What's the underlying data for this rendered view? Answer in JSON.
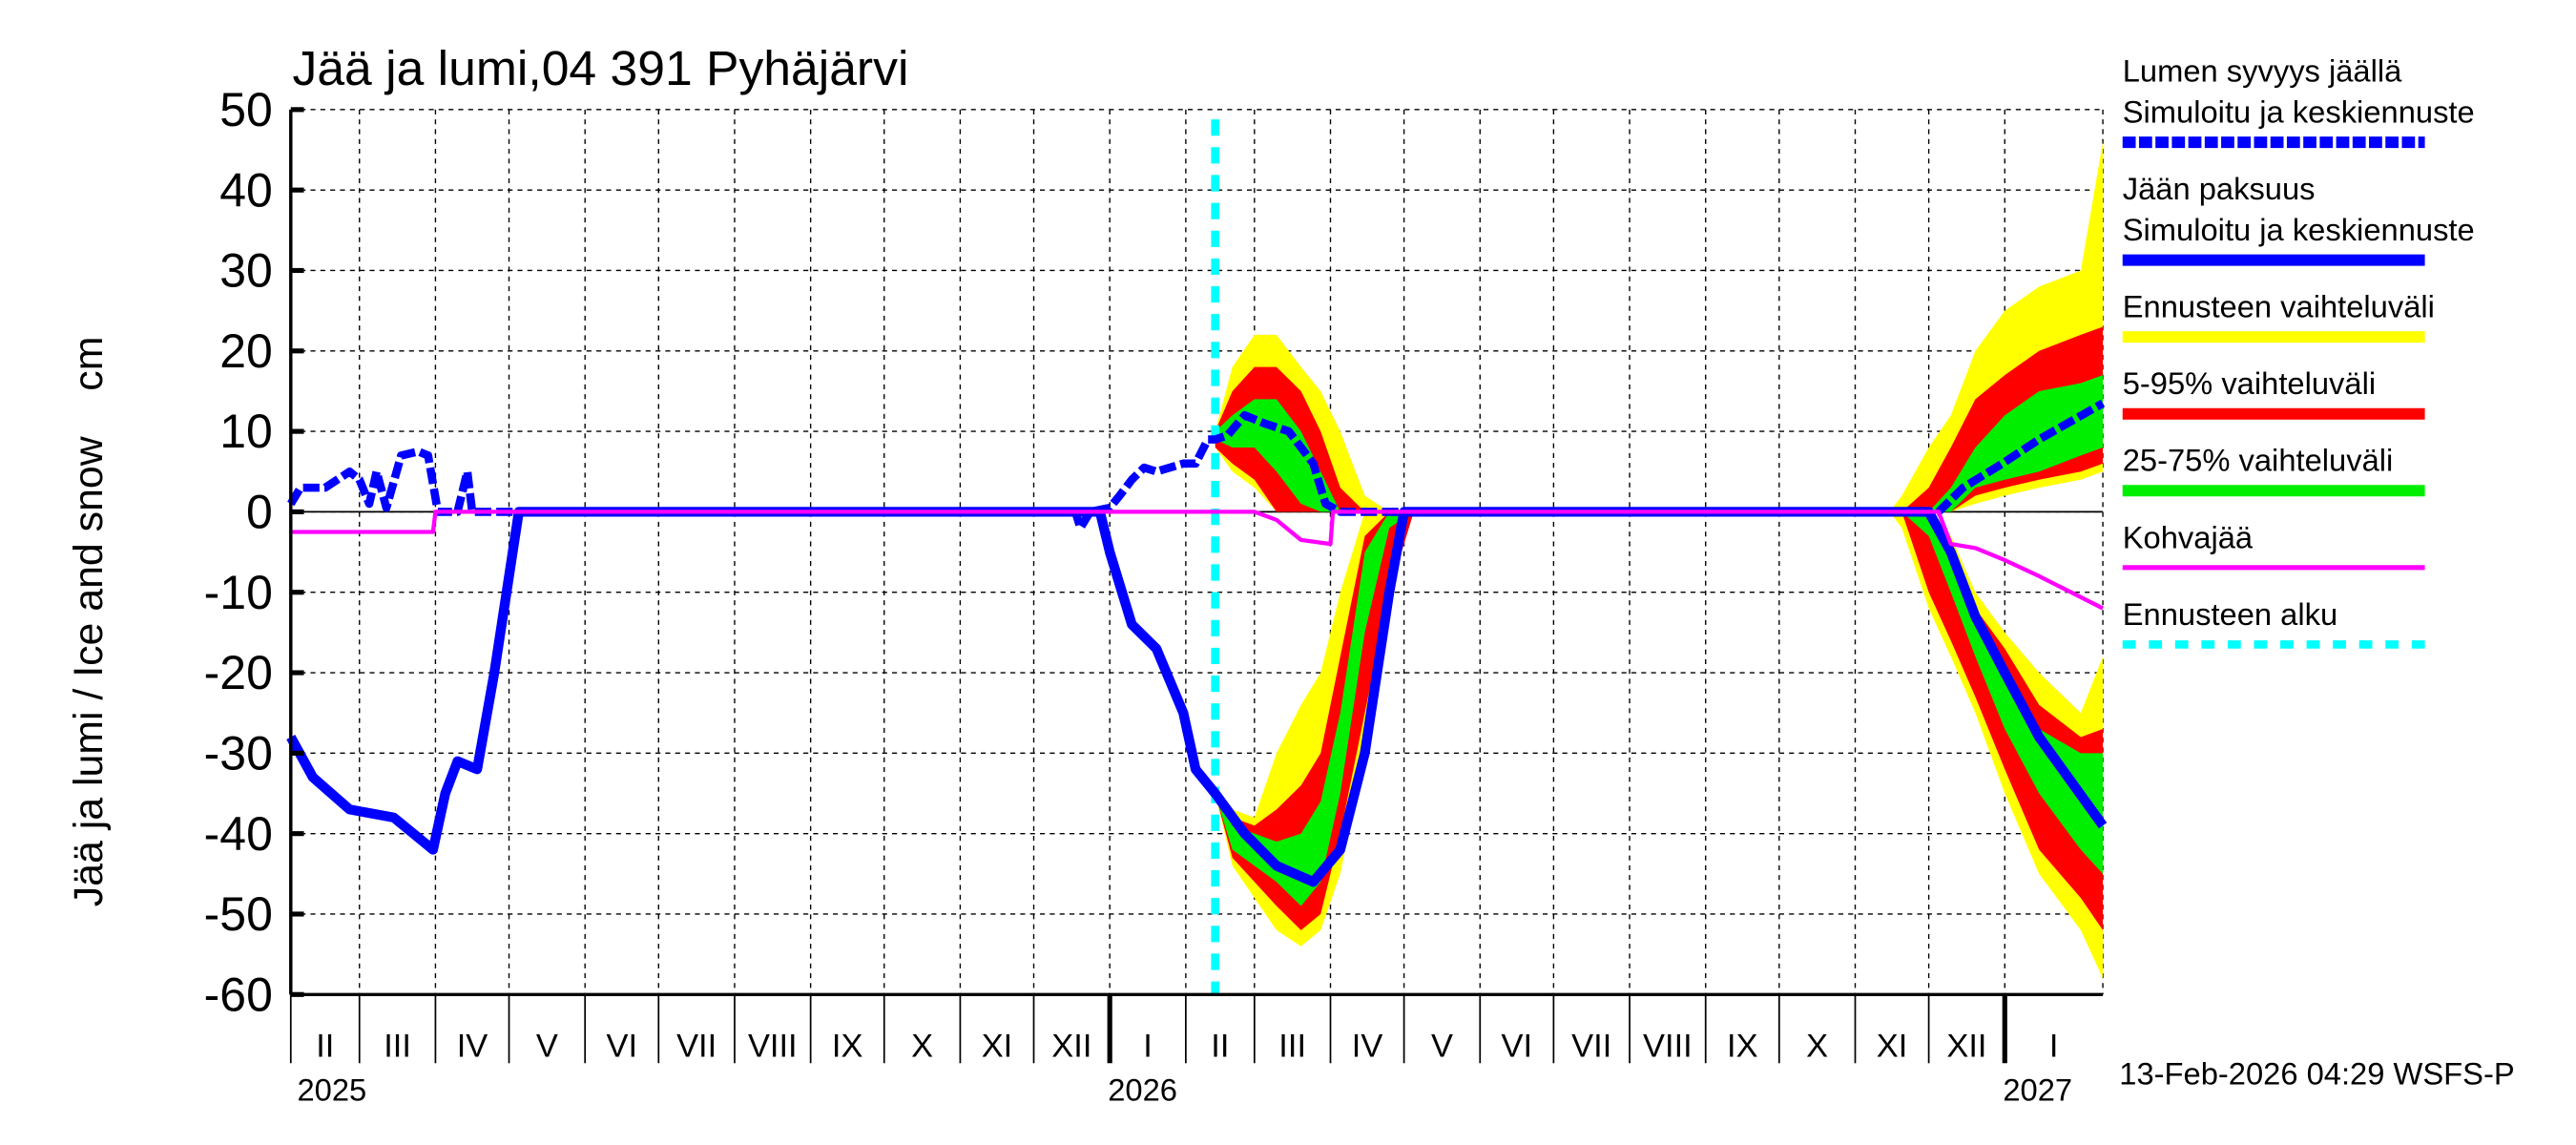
{
  "chart_data": {
    "type": "area",
    "title": "Jää ja lumi,04 391 Pyhäjärvi",
    "ylabel": "Jää ja lumi / Ice and snow    cm",
    "ylim": [
      -60,
      50
    ],
    "yticks": [
      50,
      40,
      30,
      20,
      10,
      0,
      -10,
      -20,
      -30,
      -40,
      -50,
      -60
    ],
    "xlim": [
      "2025-02-01",
      "2027-02-10"
    ],
    "grid": true,
    "months": [
      {
        "label": "II",
        "start": "2025-02-01"
      },
      {
        "label": "III",
        "start": "2025-03-01"
      },
      {
        "label": "IV",
        "start": "2025-04-01"
      },
      {
        "label": "V",
        "start": "2025-05-01"
      },
      {
        "label": "VI",
        "start": "2025-06-01"
      },
      {
        "label": "VII",
        "start": "2025-07-01"
      },
      {
        "label": "VIII",
        "start": "2025-08-01"
      },
      {
        "label": "IX",
        "start": "2025-09-01"
      },
      {
        "label": "X",
        "start": "2025-10-01"
      },
      {
        "label": "XI",
        "start": "2025-11-01"
      },
      {
        "label": "XII",
        "start": "2025-12-01"
      },
      {
        "label": "I",
        "start": "2026-01-01"
      },
      {
        "label": "II",
        "start": "2026-02-01"
      },
      {
        "label": "III",
        "start": "2026-03-01"
      },
      {
        "label": "IV",
        "start": "2026-04-01"
      },
      {
        "label": "V",
        "start": "2026-05-01"
      },
      {
        "label": "VI",
        "start": "2026-06-01"
      },
      {
        "label": "VII",
        "start": "2026-07-01"
      },
      {
        "label": "VIII",
        "start": "2026-08-01"
      },
      {
        "label": "IX",
        "start": "2026-09-01"
      },
      {
        "label": "X",
        "start": "2026-10-01"
      },
      {
        "label": "XI",
        "start": "2026-11-01"
      },
      {
        "label": "XII",
        "start": "2026-12-01"
      },
      {
        "label": "I",
        "start": "2027-01-01"
      }
    ],
    "years": [
      {
        "label": "2025",
        "date": "2025-02-01"
      },
      {
        "label": "2026",
        "date": "2026-01-01"
      },
      {
        "label": "2027",
        "date": "2027-01-01"
      }
    ],
    "forecast_start": "2026-02-13",
    "colors": {
      "snow": "#0000ff",
      "ice": "#0000ff",
      "range": "#ffff00",
      "p5_95": "#ff0000",
      "p25_75": "#00ee00",
      "slush": "#ff00ff",
      "forecast_start": "#00ffff"
    },
    "series": [
      {
        "name": "Lumen syvyys jäällä",
        "style": "dashed",
        "x": [
          "2025-02-01",
          "2025-02-05",
          "2025-02-15",
          "2025-02-25",
          "2025-03-01",
          "2025-03-05",
          "2025-03-08",
          "2025-03-12",
          "2025-03-18",
          "2025-03-25",
          "2025-03-29",
          "2025-04-02",
          "2025-04-10",
          "2025-04-14",
          "2025-04-16",
          "2025-12-15",
          "2025-12-18",
          "2025-12-20",
          "2025-12-24",
          "2026-01-01",
          "2026-01-05",
          "2026-01-10",
          "2026-01-15",
          "2026-01-20",
          "2026-01-31",
          "2026-02-05",
          "2026-02-10",
          "2026-02-13",
          "2026-02-18",
          "2026-02-25",
          "2026-03-05",
          "2026-03-15",
          "2026-03-25",
          "2026-03-30",
          "2026-04-05",
          "2026-11-25",
          "2026-12-05",
          "2026-12-15",
          "2026-12-31",
          "2027-01-15",
          "2027-02-10"
        ],
        "y": [
          1,
          3,
          3,
          5,
          4,
          1,
          5,
          0.5,
          7,
          7.5,
          7,
          0,
          0,
          5,
          0,
          0,
          0,
          -2,
          0,
          0.5,
          2,
          4,
          5.5,
          5,
          6,
          6,
          9,
          9,
          9.5,
          12,
          11,
          10,
          6,
          1,
          0,
          0,
          0,
          3,
          6,
          9,
          13.5
        ]
      },
      {
        "name": "Jään paksuus",
        "style": "solid",
        "x": [
          "2025-02-01",
          "2025-02-10",
          "2025-02-25",
          "2025-03-15",
          "2025-03-31",
          "2025-04-05",
          "2025-04-10",
          "2025-04-18",
          "2025-04-25",
          "2025-04-30",
          "2025-05-05",
          "2025-12-28",
          "2026-01-01",
          "2026-01-10",
          "2026-01-20",
          "2026-01-31",
          "2026-02-05",
          "2026-02-13",
          "2026-02-25",
          "2026-03-10",
          "2026-03-25",
          "2026-04-05",
          "2026-04-15",
          "2026-04-25",
          "2026-05-01",
          "2026-12-01",
          "2026-12-10",
          "2026-12-20",
          "2027-01-01",
          "2027-01-15",
          "2027-02-10"
        ],
        "y": [
          -28,
          -33,
          -37,
          -38,
          -42,
          -35,
          -31,
          -32,
          -20,
          -10,
          0,
          0,
          -5,
          -14,
          -17,
          -25,
          -32,
          -35,
          -40,
          -44,
          -46,
          -42,
          -30,
          -10,
          0,
          0,
          -5,
          -13,
          -20,
          -28,
          -39
        ]
      },
      {
        "name": "Kohvajää",
        "style": "solid",
        "x": [
          "2025-02-01",
          "2025-03-31",
          "2025-04-01",
          "2026-03-01",
          "2026-03-10",
          "2026-03-20",
          "2026-04-01",
          "2026-04-02",
          "2026-12-05",
          "2026-12-10",
          "2026-12-20",
          "2027-01-01",
          "2027-01-15",
          "2027-02-10"
        ],
        "y": [
          -2.5,
          -2.5,
          0,
          0,
          -1,
          -3.5,
          -4,
          0,
          0,
          -4,
          -4.5,
          -6,
          -8,
          -12
        ]
      }
    ],
    "bands": {
      "x_spring": [
        "2026-02-13",
        "2026-02-20",
        "2026-03-01",
        "2026-03-10",
        "2026-03-20",
        "2026-03-28",
        "2026-04-05",
        "2026-04-15",
        "2026-04-25",
        "2026-05-05"
      ],
      "snow_spring": {
        "range": [
          [
            8,
            10
          ],
          [
            5,
            18
          ],
          [
            3,
            22
          ],
          [
            0,
            22
          ],
          [
            0,
            18
          ],
          [
            0,
            15
          ],
          [
            0,
            10
          ],
          [
            0,
            2
          ],
          [
            0,
            0
          ],
          [
            0,
            0
          ]
        ],
        "p5_95": [
          [
            8,
            10
          ],
          [
            6,
            15
          ],
          [
            4,
            18
          ],
          [
            0,
            18
          ],
          [
            0,
            15
          ],
          [
            0,
            10
          ],
          [
            0,
            3
          ],
          [
            0,
            0
          ],
          [
            0,
            0
          ],
          [
            0,
            0
          ]
        ],
        "p25_75": [
          [
            9,
            10
          ],
          [
            8,
            12
          ],
          [
            8,
            14
          ],
          [
            5,
            14
          ],
          [
            1,
            10
          ],
          [
            0,
            5
          ],
          [
            0,
            0
          ],
          [
            0,
            0
          ],
          [
            0,
            0
          ],
          [
            0,
            0
          ]
        ]
      },
      "ice_spring": {
        "range": [
          [
            -35,
            -35
          ],
          [
            -44,
            -37
          ],
          [
            -48,
            -38
          ],
          [
            -52,
            -30
          ],
          [
            -54,
            -24
          ],
          [
            -52,
            -20
          ],
          [
            -45,
            -10
          ],
          [
            -30,
            0
          ],
          [
            -5,
            0
          ],
          [
            0,
            0
          ]
        ],
        "p5_95": [
          [
            -35,
            -35
          ],
          [
            -43,
            -38
          ],
          [
            -46,
            -39
          ],
          [
            -49,
            -37
          ],
          [
            -52,
            -34
          ],
          [
            -50,
            -30
          ],
          [
            -40,
            -18
          ],
          [
            -25,
            -3
          ],
          [
            -10,
            0
          ],
          [
            0,
            0
          ]
        ],
        "p25_75": [
          [
            -35,
            -35
          ],
          [
            -42,
            -39
          ],
          [
            -44,
            -40
          ],
          [
            -46,
            -41
          ],
          [
            -49,
            -40
          ],
          [
            -46,
            -36
          ],
          [
            -35,
            -25
          ],
          [
            -15,
            -5
          ],
          [
            -2,
            0
          ],
          [
            0,
            0
          ]
        ]
      },
      "x_winter": [
        "2026-11-15",
        "2026-11-20",
        "2026-12-01",
        "2026-12-10",
        "2026-12-20",
        "2027-01-01",
        "2027-01-15",
        "2027-02-01",
        "2027-02-10"
      ],
      "snow_winter": {
        "range": [
          [
            0,
            0
          ],
          [
            0,
            2
          ],
          [
            0,
            8
          ],
          [
            0,
            12
          ],
          [
            1,
            20
          ],
          [
            2,
            25
          ],
          [
            3,
            28
          ],
          [
            4,
            30
          ],
          [
            5,
            46
          ]
        ],
        "p5_95": [
          [
            0,
            0
          ],
          [
            0,
            0
          ],
          [
            0,
            3
          ],
          [
            0,
            8
          ],
          [
            2,
            14
          ],
          [
            3,
            17
          ],
          [
            4,
            20
          ],
          [
            5,
            22
          ],
          [
            6,
            23
          ]
        ],
        "p25_75": [
          [
            0,
            0
          ],
          [
            0,
            0
          ],
          [
            0,
            0
          ],
          [
            0,
            3
          ],
          [
            3,
            8
          ],
          [
            4,
            12
          ],
          [
            5,
            15
          ],
          [
            7,
            16
          ],
          [
            8,
            17
          ]
        ]
      },
      "ice_winter": {
        "range": [
          [
            0,
            0
          ],
          [
            -2,
            0
          ],
          [
            -12,
            0
          ],
          [
            -18,
            -3
          ],
          [
            -25,
            -10
          ],
          [
            -35,
            -15
          ],
          [
            -45,
            -20
          ],
          [
            -52,
            -25
          ],
          [
            -58,
            -18
          ]
        ],
        "p5_95": [
          [
            0,
            0
          ],
          [
            0,
            0
          ],
          [
            -10,
            0
          ],
          [
            -16,
            -4
          ],
          [
            -23,
            -12
          ],
          [
            -32,
            -17
          ],
          [
            -42,
            -24
          ],
          [
            -48,
            -28
          ],
          [
            -52,
            -27
          ]
        ],
        "p25_75": [
          [
            0,
            0
          ],
          [
            0,
            0
          ],
          [
            -3,
            0
          ],
          [
            -10,
            -5
          ],
          [
            -18,
            -13
          ],
          [
            -27,
            -20
          ],
          [
            -35,
            -27
          ],
          [
            -42,
            -30
          ],
          [
            -45,
            -30
          ]
        ]
      }
    }
  },
  "legend": [
    {
      "line1": "Lumen syvyys jäällä",
      "line2": "Simuloitu ja keskiennuste",
      "color": "#0000ff",
      "style": "dashed"
    },
    {
      "line1": "Jään paksuus",
      "line2": "Simuloitu ja keskiennuste",
      "color": "#0000ff",
      "style": "solid"
    },
    {
      "line1": "Ennusteen vaihteluväli",
      "color": "#ffff00",
      "style": "solid"
    },
    {
      "line1": "5-95% vaihteluväli",
      "color": "#ff0000",
      "style": "solid"
    },
    {
      "line1": "25-75% vaihteluväli",
      "color": "#00ee00",
      "style": "solid"
    },
    {
      "line1": "Kohvajää",
      "color": "#ff00ff",
      "style": "thin"
    },
    {
      "line1": "Ennusteen alku",
      "color": "#00ffff",
      "style": "dotted"
    }
  ],
  "footer": {
    "timestamp": "13-Feb-2026 04:29 WSFS-P"
  }
}
